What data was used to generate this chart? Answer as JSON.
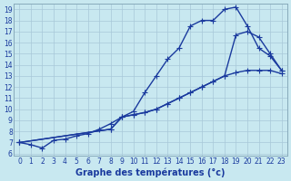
{
  "xlabel": "Graphe des températures (°c)",
  "background_color": "#c8e8f0",
  "line_color": "#1a3a9e",
  "grid_color": "#a8c8d8",
  "xlim": [
    -0.5,
    23.5
  ],
  "ylim": [
    5.8,
    19.5
  ],
  "xticks": [
    0,
    1,
    2,
    3,
    4,
    5,
    6,
    7,
    8,
    9,
    10,
    11,
    12,
    13,
    14,
    15,
    16,
    17,
    18,
    19,
    20,
    21,
    22,
    23
  ],
  "yticks": [
    6,
    7,
    8,
    9,
    10,
    11,
    12,
    13,
    14,
    15,
    16,
    17,
    18,
    19
  ],
  "curve1_x": [
    0,
    1,
    2,
    3,
    4,
    5,
    6,
    7,
    8,
    9,
    10,
    11,
    12,
    13,
    14,
    15,
    16,
    17,
    18,
    19,
    20,
    21,
    22,
    23
  ],
  "curve1_y": [
    7.0,
    6.8,
    6.5,
    7.2,
    7.3,
    7.6,
    7.8,
    8.2,
    8.7,
    9.3,
    9.8,
    11.5,
    13.0,
    14.5,
    15.5,
    17.5,
    18.0,
    18.0,
    19.0,
    19.2,
    17.5,
    15.5,
    14.8,
    13.5
  ],
  "curve2_x": [
    0,
    8,
    9,
    10,
    11,
    12,
    13,
    14,
    15,
    16,
    17,
    18,
    19,
    20,
    21,
    22,
    23
  ],
  "curve2_y": [
    7.0,
    8.2,
    9.3,
    9.5,
    9.7,
    10.0,
    10.5,
    11.0,
    11.5,
    12.0,
    12.5,
    13.0,
    13.3,
    13.5,
    13.5,
    13.5,
    13.2
  ],
  "curve3_x": [
    0,
    8,
    9,
    10,
    11,
    12,
    13,
    14,
    15,
    16,
    17,
    18,
    19,
    20,
    21,
    22,
    23
  ],
  "curve3_y": [
    7.0,
    8.2,
    9.3,
    9.5,
    9.7,
    10.0,
    10.5,
    11.0,
    11.5,
    12.0,
    12.5,
    13.0,
    16.7,
    17.0,
    16.5,
    15.0,
    13.5
  ],
  "marker_size": 2.5,
  "linewidth": 1.0,
  "tick_fontsize": 5.5,
  "label_fontsize": 7
}
